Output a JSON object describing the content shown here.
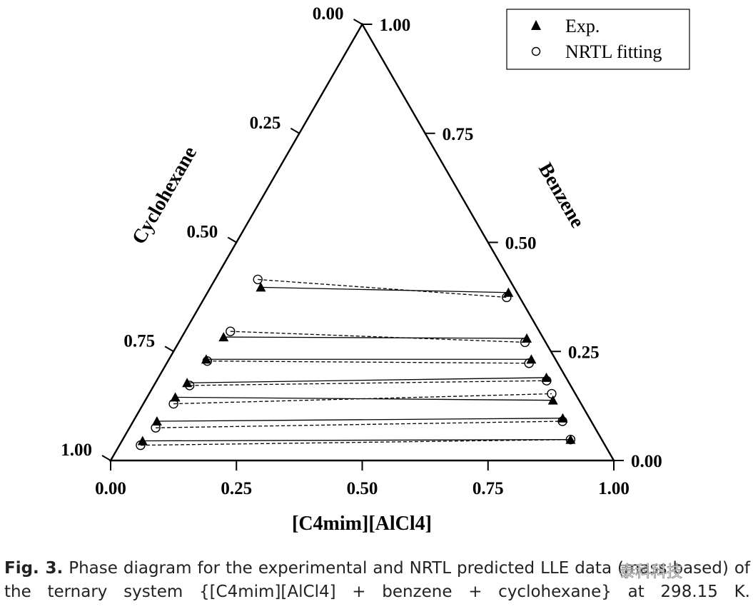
{
  "chart_data": {
    "type": "ternary-scatter",
    "corners": {
      "top": "Benzene",
      "bottom_left": "Cyclohexane",
      "bottom_right": "[C4mim][AlCl4]"
    },
    "axes": {
      "bottom": {
        "label": "[C4mim][AlCl4]",
        "ticks": [
          "0.00",
          "0.25",
          "0.50",
          "0.75",
          "1.00"
        ]
      },
      "left": {
        "label": "Cyclohexane",
        "ticks": [
          "0.00",
          "0.25",
          "0.50",
          "0.75",
          "1.00"
        ]
      },
      "right": {
        "label": "Benzene",
        "ticks": [
          "0.00",
          "0.25",
          "0.50",
          "0.75",
          "1.00"
        ]
      }
    },
    "legend_position": "top-right",
    "series": [
      {
        "name": "Exp.",
        "marker": "filled-triangle",
        "line": "solid",
        "tie_lines": [
          {
            "raffinate": {
              "il": 0.1,
              "benzene": 0.397
            },
            "extract": {
              "il": 0.598,
              "benzene": 0.385
            }
          },
          {
            "raffinate": {
              "il": 0.083,
              "benzene": 0.283
            },
            "extract": {
              "il": 0.687,
              "benzene": 0.28
            }
          },
          {
            "raffinate": {
              "il": 0.074,
              "benzene": 0.232
            },
            "extract": {
              "il": 0.72,
              "benzene": 0.232
            }
          },
          {
            "raffinate": {
              "il": 0.063,
              "benzene": 0.178
            },
            "extract": {
              "il": 0.771,
              "benzene": 0.19
            }
          },
          {
            "raffinate": {
              "il": 0.056,
              "benzene": 0.145
            },
            "extract": {
              "il": 0.81,
              "benzene": 0.138
            }
          },
          {
            "raffinate": {
              "il": 0.047,
              "benzene": 0.09
            },
            "extract": {
              "il": 0.85,
              "benzene": 0.097
            }
          },
          {
            "raffinate": {
              "il": 0.041,
              "benzene": 0.045
            },
            "extract": {
              "il": 0.89,
              "benzene": 0.048
            }
          }
        ]
      },
      {
        "name": "NRTL fitting",
        "marker": "open-circle",
        "line": "dashed",
        "tie_lines": [
          {
            "raffinate": {
              "il": 0.085,
              "benzene": 0.415
            },
            "extract": {
              "il": 0.6,
              "benzene": 0.374
            }
          },
          {
            "raffinate": {
              "il": 0.09,
              "benzene": 0.296
            },
            "extract": {
              "il": 0.688,
              "benzene": 0.271
            }
          },
          {
            "raffinate": {
              "il": 0.078,
              "benzene": 0.228
            },
            "extract": {
              "il": 0.72,
              "benzene": 0.223
            }
          },
          {
            "raffinate": {
              "il": 0.071,
              "benzene": 0.172
            },
            "extract": {
              "il": 0.775,
              "benzene": 0.183
            }
          },
          {
            "raffinate": {
              "il": 0.06,
              "benzene": 0.13
            },
            "extract": {
              "il": 0.8,
              "benzene": 0.153
            }
          },
          {
            "raffinate": {
              "il": 0.052,
              "benzene": 0.075
            },
            "extract": {
              "il": 0.853,
              "benzene": 0.09
            }
          },
          {
            "raffinate": {
              "il": 0.042,
              "benzene": 0.035
            },
            "extract": {
              "il": 0.89,
              "benzene": 0.048
            }
          }
        ]
      }
    ]
  },
  "caption": {
    "label": "Fig. 3.",
    "text": " Phase diagram for the experimental and NRTL predicted LLE data (mass based) of the ternary system {[C4mim][AlCl4] + benzene + cyclohexane} at 298.15 K."
  },
  "watermark": "泰科科技"
}
